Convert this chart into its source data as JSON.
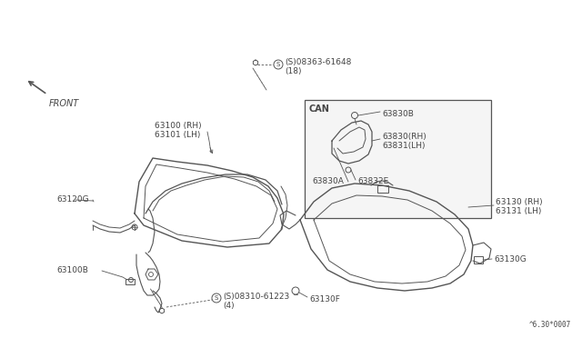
{
  "bg_color": "#ffffff",
  "line_color": "#555555",
  "text_color": "#444444",
  "fig_width": 6.4,
  "fig_height": 3.72,
  "title_bottom": "^6.30*0007",
  "labels": {
    "63100RH": "63100 (RH)",
    "63101LH": "63101 (LH)",
    "63120G": "63120G",
    "63100B": "63100B",
    "screw1_label": "(S)08363-61648",
    "screw1_qty": "(18)",
    "screw2_label": "(S)08310-61223",
    "screw2_qty": "(4)",
    "63130RH": "63130 (RH)",
    "63131LH": "63131 (LH)",
    "63130G": "63130G",
    "63130F": "63130F",
    "can_label": "CAN",
    "63830A": "63830A",
    "63830B": "63830B",
    "63830RH": "63830(RH)",
    "63831LH": "63831(LH)",
    "63832E": "63832E",
    "front": "FRONT"
  }
}
